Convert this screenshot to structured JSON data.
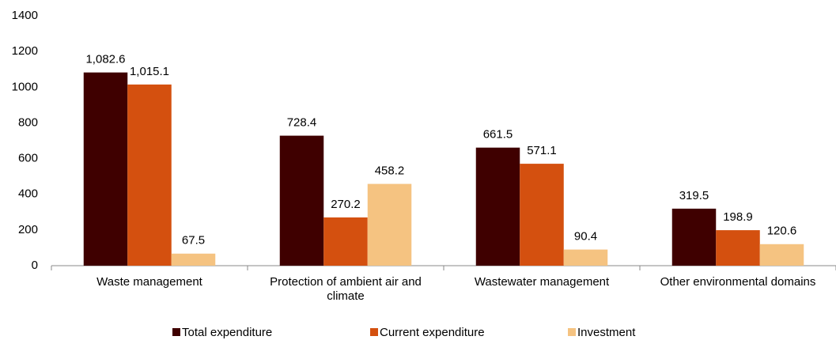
{
  "chart_data": {
    "type": "bar",
    "categories": [
      "Waste management",
      "Protection of ambient air and climate",
      "Wastewater management",
      "Other environmental domains"
    ],
    "series": [
      {
        "name": "Total expenditure",
        "color": "#3f0000",
        "values": [
          1082.6,
          728.4,
          661.5,
          319.5
        ],
        "value_labels": [
          "1,082.6",
          "728.4",
          "661.5",
          "319.5"
        ]
      },
      {
        "name": "Current expenditure",
        "color": "#d4500f",
        "values": [
          1015.1,
          270.2,
          571.1,
          198.9
        ],
        "value_labels": [
          "1,015.1",
          "270.2",
          "571.1",
          "198.9"
        ]
      },
      {
        "name": "Investment",
        "color": "#f5c381",
        "values": [
          67.5,
          458.2,
          90.4,
          120.6
        ],
        "value_labels": [
          "67.5",
          "458.2",
          "90.4",
          "120.6"
        ]
      }
    ],
    "ylim": [
      0,
      1400
    ],
    "yticks": [
      0,
      200,
      400,
      600,
      800,
      1000,
      1200,
      1400
    ],
    "grid": false,
    "legend": "bottom"
  }
}
